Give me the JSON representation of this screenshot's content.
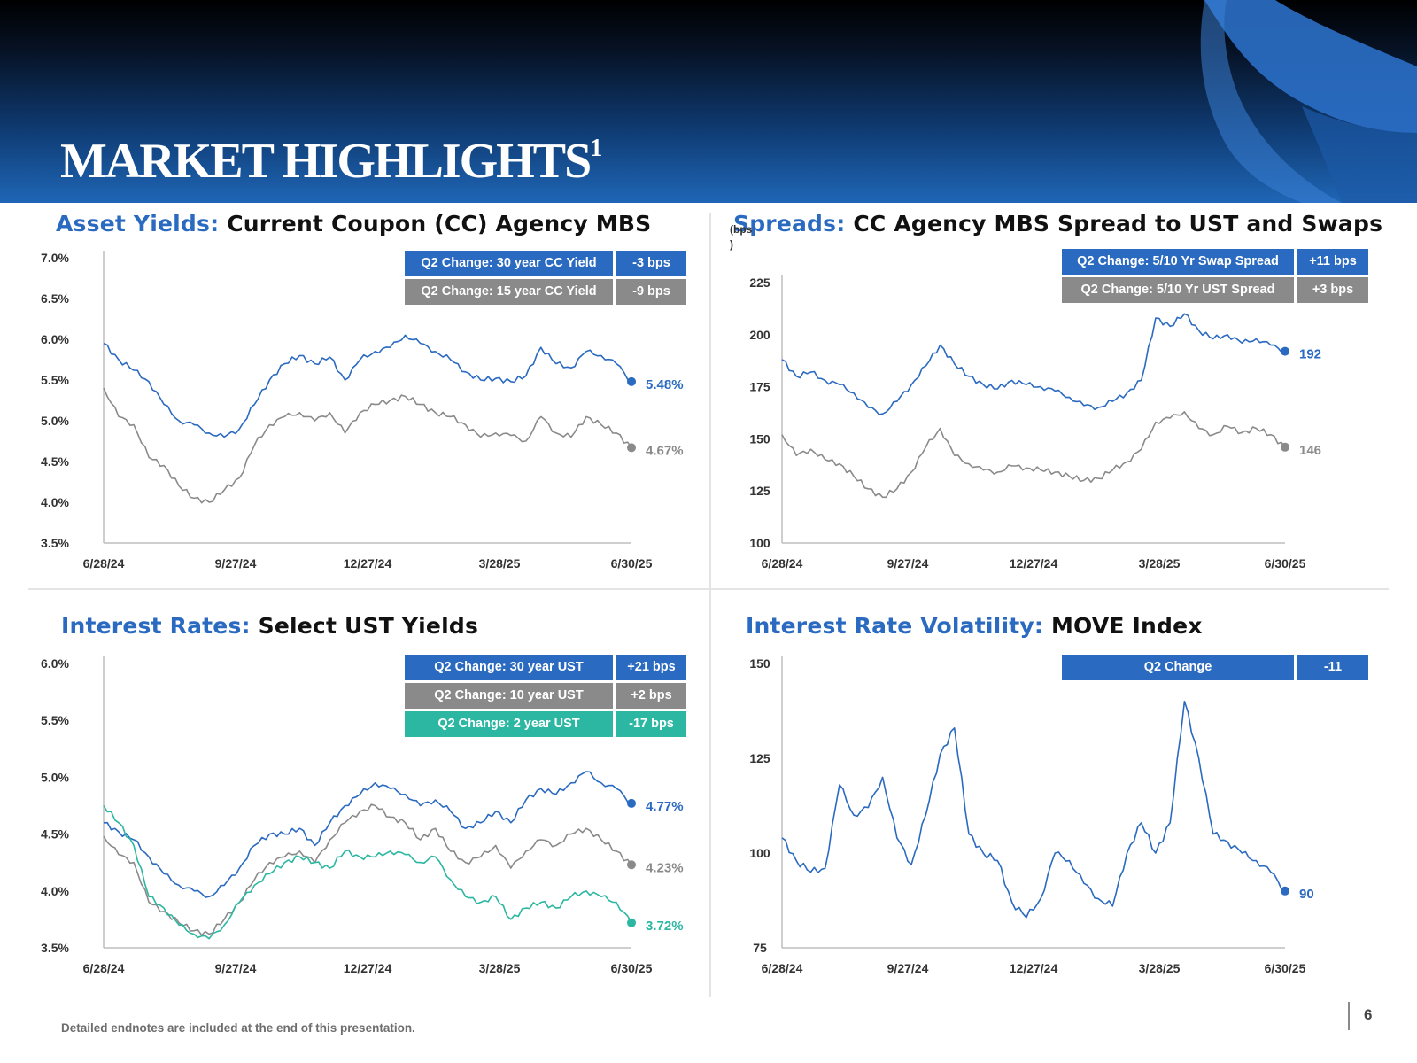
{
  "header": {
    "title": "MARKET HIGHLIGHTS",
    "superscript": "1"
  },
  "footer": {
    "note": "Detailed endnotes are included at the end of this presentation.",
    "page_number": "6"
  },
  "colors": {
    "blue": "#2a6ac0",
    "gray": "#8a8a8a",
    "teal": "#2bb7a1"
  },
  "panels": [
    {
      "id": "asset-yields",
      "title_lead": "Asset Yields:",
      "title_rest": "Current Coupon (CC) Agency MBS",
      "changes": [
        {
          "label": "Q2 Change: 30 year CC Yield",
          "value": "-3 bps",
          "color": "#2a6ac0"
        },
        {
          "label": "Q2 Change: 15 year CC Yield",
          "value": "-9 bps",
          "color": "#8a8a8a"
        }
      ]
    },
    {
      "id": "spreads",
      "title_lead": "Spreads:",
      "title_rest": "CC Agency MBS Spread to UST and Swaps",
      "changes": [
        {
          "label": "Q2 Change: 5/10 Yr Swap Spread",
          "value": "+11 bps",
          "color": "#2a6ac0"
        },
        {
          "label": "Q2 Change: 5/10 Yr UST Spread",
          "value": "+3 bps",
          "color": "#8a8a8a"
        }
      ]
    },
    {
      "id": "interest-rates",
      "title_lead": "Interest Rates:",
      "title_rest": "Select UST Yields",
      "changes": [
        {
          "label": "Q2 Change: 30 year UST",
          "value": "+21 bps",
          "color": "#2a6ac0"
        },
        {
          "label": "Q2 Change: 10 year UST",
          "value": "+2 bps",
          "color": "#8a8a8a"
        },
        {
          "label": "Q2 Change: 2 year UST",
          "value": "-17 bps",
          "color": "#2bb7a1"
        }
      ]
    },
    {
      "id": "volatility",
      "title_lead": "Interest Rate Volatility:",
      "title_rest": "MOVE Index",
      "changes": [
        {
          "label": "Q2 Change",
          "value": "-11",
          "color": "#2a6ac0"
        }
      ]
    }
  ],
  "chart_data": [
    {
      "type": "line",
      "title": "Asset Yields: Current Coupon (CC) Agency MBS",
      "ylabel": "",
      "x_ticks": [
        "6/28/24",
        "9/27/24",
        "12/27/24",
        "3/28/25",
        "6/30/25"
      ],
      "y_ticks": [
        "3.5%",
        "4.0%",
        "4.5%",
        "5.0%",
        "5.5%",
        "6.0%",
        "6.5%",
        "7.0%"
      ],
      "ylim": [
        3.5,
        7.0
      ],
      "grid": false,
      "series": [
        {
          "end_label": "5.48%",
          "color": "#2a6ac0",
          "values": [
            5.95,
            5.75,
            5.62,
            5.48,
            5.2,
            5.0,
            4.95,
            4.85,
            4.8,
            4.9,
            5.2,
            5.5,
            5.7,
            5.8,
            5.7,
            5.78,
            5.5,
            5.75,
            5.85,
            5.9,
            6.05,
            5.95,
            5.85,
            5.75,
            5.6,
            5.5,
            5.52,
            5.48,
            5.55,
            5.9,
            5.7,
            5.65,
            5.85,
            5.8,
            5.7,
            5.48
          ]
        },
        {
          "end_label": "4.67%",
          "color": "#8a8a8a",
          "values": [
            5.4,
            5.05,
            4.95,
            4.55,
            4.45,
            4.2,
            4.05,
            4.0,
            4.15,
            4.3,
            4.7,
            4.95,
            5.05,
            5.1,
            5.0,
            5.1,
            4.85,
            5.1,
            5.2,
            5.25,
            5.3,
            5.2,
            5.1,
            5.05,
            4.95,
            4.8,
            4.85,
            4.82,
            4.75,
            5.05,
            4.85,
            4.8,
            5.05,
            4.95,
            4.85,
            4.67
          ]
        }
      ]
    },
    {
      "type": "line",
      "title": "Spreads: CC Agency MBS Spread to UST and Swaps",
      "ylabel": "(bps)",
      "x_ticks": [
        "6/28/24",
        "9/27/24",
        "12/27/24",
        "3/28/25",
        "6/30/25"
      ],
      "y_ticks": [
        "100",
        "125",
        "150",
        "175",
        "200",
        "225"
      ],
      "ylim": [
        100,
        225
      ],
      "grid": false,
      "series": [
        {
          "end_label": "192",
          "color": "#2a6ac0",
          "values": [
            188,
            180,
            182,
            178,
            176,
            172,
            165,
            162,
            168,
            176,
            185,
            195,
            186,
            180,
            176,
            174,
            178,
            176,
            175,
            173,
            170,
            166,
            165,
            168,
            172,
            178,
            208,
            204,
            210,
            202,
            198,
            200,
            196,
            198,
            195,
            192
          ]
        },
        {
          "end_label": "146",
          "color": "#8a8a8a",
          "values": [
            152,
            142,
            145,
            140,
            138,
            132,
            126,
            122,
            126,
            134,
            146,
            155,
            142,
            138,
            135,
            134,
            137,
            136,
            135,
            134,
            132,
            130,
            131,
            135,
            139,
            145,
            158,
            160,
            163,
            155,
            152,
            156,
            153,
            155,
            152,
            146
          ]
        }
      ]
    },
    {
      "type": "line",
      "title": "Interest Rates: Select UST Yields",
      "ylabel": "",
      "x_ticks": [
        "6/28/24",
        "9/27/24",
        "12/27/24",
        "3/28/25",
        "6/30/25"
      ],
      "y_ticks": [
        "3.5%",
        "4.0%",
        "4.5%",
        "5.0%",
        "5.5%",
        "6.0%"
      ],
      "ylim": [
        3.5,
        6.0
      ],
      "grid": false,
      "series": [
        {
          "end_label": "4.77%",
          "color": "#2a6ac0",
          "values": [
            4.6,
            4.52,
            4.45,
            4.3,
            4.15,
            4.05,
            4.0,
            3.95,
            4.05,
            4.2,
            4.4,
            4.5,
            4.5,
            4.55,
            4.4,
            4.6,
            4.75,
            4.85,
            4.95,
            4.9,
            4.85,
            4.75,
            4.8,
            4.7,
            4.55,
            4.6,
            4.7,
            4.6,
            4.8,
            4.9,
            4.85,
            4.95,
            5.05,
            4.95,
            4.9,
            4.77
          ]
        },
        {
          "end_label": "4.23%",
          "color": "#8a8a8a",
          "values": [
            4.48,
            4.32,
            4.25,
            3.9,
            3.82,
            3.72,
            3.65,
            3.62,
            3.75,
            3.9,
            4.1,
            4.25,
            4.3,
            4.35,
            4.25,
            4.45,
            4.6,
            4.7,
            4.75,
            4.65,
            4.6,
            4.45,
            4.55,
            4.35,
            4.25,
            4.3,
            4.4,
            4.2,
            4.35,
            4.45,
            4.4,
            4.5,
            4.55,
            4.45,
            4.35,
            4.23
          ]
        },
        {
          "end_label": "3.72%",
          "color": "#2bb7a1",
          "values": [
            4.75,
            4.6,
            4.4,
            3.95,
            3.85,
            3.7,
            3.62,
            3.58,
            3.7,
            3.9,
            4.05,
            4.15,
            4.25,
            4.3,
            4.25,
            4.2,
            4.35,
            4.3,
            4.3,
            4.35,
            4.32,
            4.25,
            4.3,
            4.1,
            3.95,
            3.9,
            3.95,
            3.75,
            3.85,
            3.9,
            3.85,
            3.95,
            4.0,
            3.95,
            3.9,
            3.72
          ]
        }
      ]
    },
    {
      "type": "line",
      "title": "Interest Rate Volatility: MOVE Index",
      "ylabel": "",
      "x_ticks": [
        "6/28/24",
        "9/27/24",
        "12/27/24",
        "3/28/25",
        "6/30/25"
      ],
      "y_ticks": [
        "75",
        "100",
        "125",
        "150"
      ],
      "ylim": [
        75,
        150
      ],
      "grid": false,
      "series": [
        {
          "end_label": "90",
          "color": "#2a6ac0",
          "values": [
            104,
            98,
            95,
            96,
            118,
            110,
            112,
            120,
            104,
            97,
            110,
            126,
            133,
            105,
            100,
            98,
            87,
            83,
            88,
            100,
            98,
            92,
            88,
            86,
            100,
            108,
            100,
            108,
            140,
            125,
            105,
            103,
            100,
            98,
            95,
            90
          ]
        }
      ]
    }
  ]
}
